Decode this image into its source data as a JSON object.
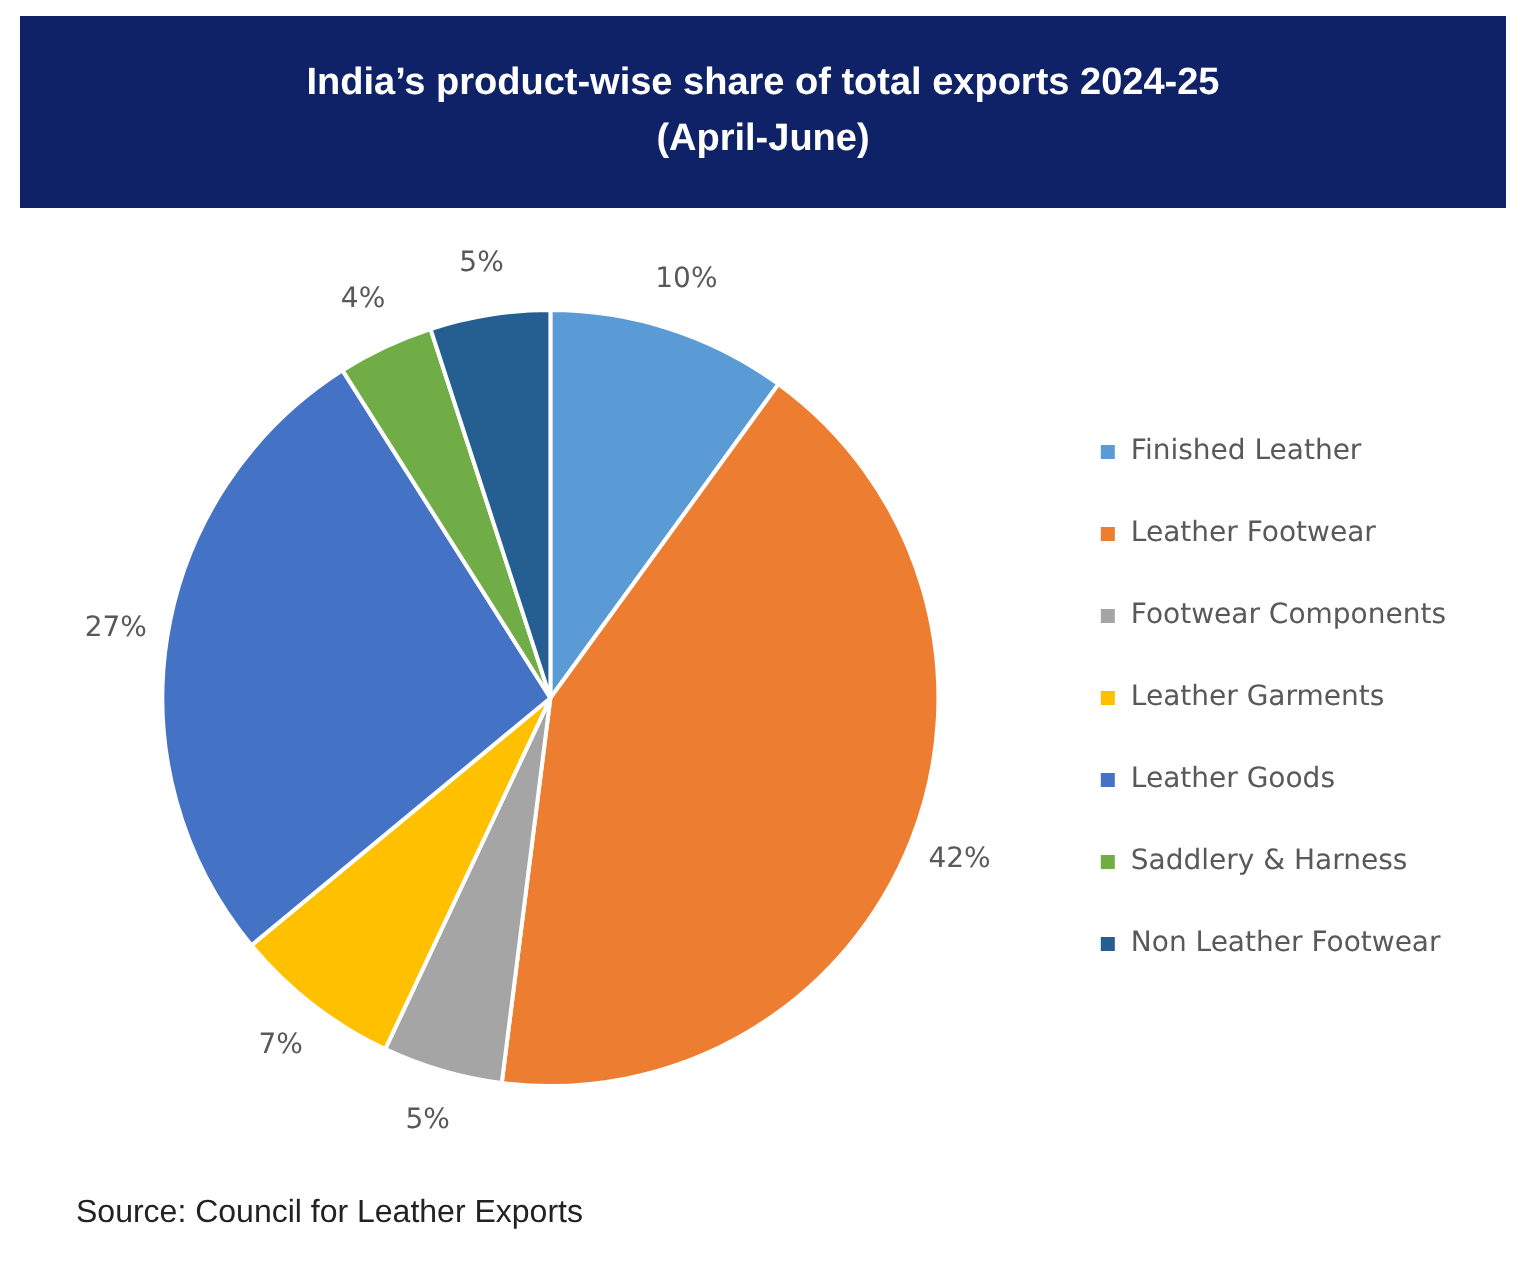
{
  "chart_data": {
    "type": "pie",
    "title": "India’s product-wise share of total exports 2024-25\n(April-June)",
    "categories": [
      "Finished Leather",
      "Leather Footwear",
      "Footwear Components",
      "Leather Garments",
      "Leather Goods",
      "Saddlery & Harness",
      "Non Leather Footwear"
    ],
    "values": [
      10,
      42,
      5,
      7,
      27,
      4,
      5
    ],
    "value_labels": [
      "10%",
      "42%",
      "5%",
      "7%",
      "27%",
      "4%",
      "5%"
    ],
    "colors": [
      "#5b9bd5",
      "#ed7d31",
      "#a5a5a5",
      "#ffc000",
      "#4472c4",
      "#70ad47",
      "#255e91"
    ],
    "legend": "right",
    "annotations": [
      "Source: Council for Leather Exports"
    ]
  }
}
